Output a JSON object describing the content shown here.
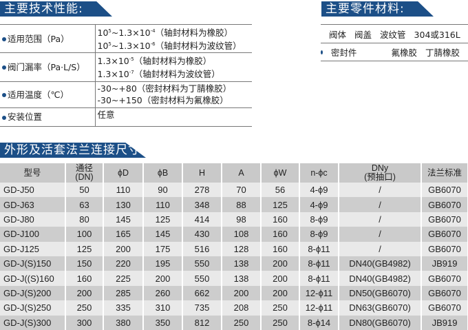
{
  "performance": {
    "title": "主要技术性能:",
    "rows": [
      {
        "label": "适用范围（Pa）",
        "lines": [
          [
            "10",
            "5",
            "~1.3×10",
            "-4",
            "（轴封材料为橡胶）"
          ],
          [
            "10",
            "5",
            "~1.3×10",
            "-6",
            "（轴封材料为波纹管）"
          ]
        ]
      },
      {
        "label": "阀门漏率（Pa·L/S）",
        "lines": [
          [
            "",
            "",
            "1.3×10",
            "-5",
            "（轴封材料为橡胶）"
          ],
          [
            "",
            "",
            "1.3×10",
            "-7",
            "（轴封材料为波纹管）"
          ]
        ]
      },
      {
        "label": "适用温度（℃）",
        "lines": [
          [
            "",
            "",
            "-30~+80（密封材料为丁腈橡胶）",
            "",
            ""
          ],
          [
            "",
            "",
            "-30~+150（密封材料为氟橡胶）",
            "",
            ""
          ]
        ]
      },
      {
        "label": "安装位置",
        "lines": [
          [
            "",
            "",
            "任意",
            "",
            ""
          ]
        ]
      }
    ]
  },
  "materials": {
    "title": "主要零件材料:",
    "rows": [
      {
        "items": [
          "阀体",
          "阀盖",
          "波纹管",
          "304或316L"
        ]
      },
      {
        "items": [
          "密封件",
          "",
          "氟橡胶",
          "丁腈橡胶"
        ]
      }
    ]
  },
  "dimensions": {
    "title": "外形及活套法兰连接尺寸:",
    "headers": [
      "型号",
      "通径\n(DN)",
      "ϕD",
      "ϕB",
      "H",
      "A",
      "ϕW",
      "n-ϕc",
      "DNy\n(预抽口)",
      "法兰标准"
    ],
    "rows": [
      [
        "GD-J50",
        "50",
        "110",
        "90",
        "278",
        "70",
        "56",
        "4-ϕ9",
        "/",
        "GB6070"
      ],
      [
        "GD-J63",
        "63",
        "130",
        "110",
        "348",
        "88",
        "125",
        "4-ϕ9",
        "/",
        "GB6070"
      ],
      [
        "GD-J80",
        "80",
        "145",
        "125",
        "414",
        "98",
        "160",
        "8-ϕ9",
        "/",
        "GB6070"
      ],
      [
        "GD-J100",
        "100",
        "165",
        "145",
        "430",
        "108",
        "160",
        "8-ϕ9",
        "/",
        "GB6070"
      ],
      [
        "GD-J125",
        "125",
        "200",
        "175",
        "516",
        "128",
        "160",
        "8-ϕ11",
        "/",
        "GB6070"
      ],
      [
        "GD-J(S)150",
        "150",
        "220",
        "195",
        "550",
        "138",
        "200",
        "8-ϕ11",
        "DN40(GB4982)",
        "JB919"
      ],
      [
        "GD-J((S)160",
        "160",
        "225",
        "200",
        "550",
        "138",
        "200",
        "8-ϕ11",
        "DN40(GB4982)",
        "GB6070"
      ],
      [
        "GD-J(S)200",
        "200",
        "285",
        "260",
        "662",
        "200",
        "200",
        "12-ϕ11",
        "DN50(GB6070)",
        "GB6070"
      ],
      [
        "GD-J(S)250",
        "250",
        "335",
        "310",
        "735",
        "208",
        "250",
        "12-ϕ11",
        "DN63(GB6070)",
        "GB6070"
      ],
      [
        "GD-J(S)300",
        "300",
        "380",
        "350",
        "812",
        "250",
        "250",
        "8-ϕ14",
        "DN80(GB6070)",
        "JB919"
      ]
    ]
  },
  "colors": {
    "banner": "#1c4f87",
    "header_row": "#c9c9c9",
    "row_light": "#e9e9e9",
    "row_dark": "#cdcdcd"
  }
}
